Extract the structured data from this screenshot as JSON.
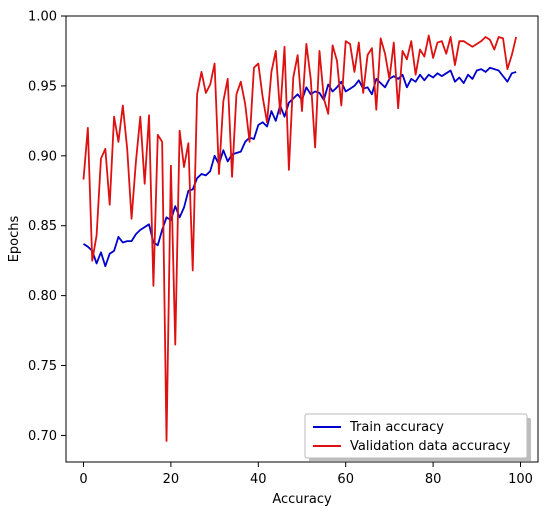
{
  "chart_data": {
    "type": "line",
    "title": "",
    "xlabel": "Accuracy",
    "ylabel": "Epochs",
    "xlim": [
      -4,
      104
    ],
    "ylim": [
      0.681,
      1.0
    ],
    "x_ticks": [
      0,
      20,
      40,
      60,
      80,
      100
    ],
    "y_ticks": [
      0.7,
      0.75,
      0.8,
      0.85,
      0.9,
      0.95,
      1.0
    ],
    "y_tick_labels": [
      "0.70",
      "0.75",
      "0.80",
      "0.85",
      "0.90",
      "0.95",
      "1.00"
    ],
    "grid": false,
    "legend_position": "lower-right",
    "series": [
      {
        "name": "Train accuracy",
        "color": "#0000cc",
        "x": [
          0,
          1,
          2,
          3,
          4,
          5,
          6,
          7,
          8,
          9,
          10,
          11,
          12,
          13,
          14,
          15,
          16,
          17,
          18,
          19,
          20,
          21,
          22,
          23,
          24,
          25,
          26,
          27,
          28,
          29,
          30,
          31,
          32,
          33,
          34,
          35,
          36,
          37,
          38,
          39,
          40,
          41,
          42,
          43,
          44,
          45,
          46,
          47,
          48,
          49,
          50,
          51,
          52,
          53,
          54,
          55,
          56,
          57,
          58,
          59,
          60,
          61,
          62,
          63,
          64,
          65,
          66,
          67,
          68,
          69,
          70,
          71,
          72,
          73,
          74,
          75,
          76,
          77,
          78,
          79,
          80,
          81,
          82,
          83,
          84,
          85,
          86,
          87,
          88,
          89,
          90,
          91,
          92,
          93,
          94,
          95,
          96,
          97,
          98,
          99
        ],
        "values": [
          0.837,
          0.835,
          0.832,
          0.823,
          0.831,
          0.821,
          0.83,
          0.832,
          0.842,
          0.838,
          0.839,
          0.839,
          0.844,
          0.847,
          0.849,
          0.851,
          0.838,
          0.836,
          0.847,
          0.856,
          0.854,
          0.864,
          0.856,
          0.863,
          0.875,
          0.876,
          0.884,
          0.887,
          0.886,
          0.889,
          0.9,
          0.894,
          0.904,
          0.896,
          0.901,
          0.902,
          0.903,
          0.91,
          0.913,
          0.912,
          0.922,
          0.924,
          0.921,
          0.932,
          0.925,
          0.936,
          0.928,
          0.938,
          0.941,
          0.944,
          0.94,
          0.949,
          0.944,
          0.946,
          0.945,
          0.94,
          0.951,
          0.946,
          0.949,
          0.953,
          0.946,
          0.948,
          0.95,
          0.954,
          0.948,
          0.949,
          0.944,
          0.955,
          0.952,
          0.949,
          0.955,
          0.957,
          0.955,
          0.958,
          0.949,
          0.955,
          0.953,
          0.958,
          0.954,
          0.958,
          0.956,
          0.959,
          0.957,
          0.959,
          0.961,
          0.953,
          0.956,
          0.952,
          0.958,
          0.955,
          0.961,
          0.962,
          0.96,
          0.963,
          0.962,
          0.961,
          0.957,
          0.953,
          0.959,
          0.96
        ]
      },
      {
        "name": "Validation data accuracy",
        "color": "#dd1111",
        "x": [
          0,
          1,
          2,
          3,
          4,
          5,
          6,
          7,
          8,
          9,
          10,
          11,
          12,
          13,
          14,
          15,
          16,
          17,
          18,
          19,
          20,
          21,
          22,
          23,
          24,
          25,
          26,
          27,
          28,
          29,
          30,
          31,
          32,
          33,
          34,
          35,
          36,
          37,
          38,
          39,
          40,
          41,
          42,
          43,
          44,
          45,
          46,
          47,
          48,
          49,
          50,
          51,
          52,
          53,
          54,
          55,
          56,
          57,
          58,
          59,
          60,
          61,
          62,
          63,
          64,
          65,
          66,
          67,
          68,
          69,
          70,
          71,
          72,
          73,
          74,
          75,
          76,
          77,
          78,
          79,
          80,
          81,
          82,
          83,
          84,
          85,
          86,
          87,
          88,
          89,
          90,
          91,
          92,
          93,
          94,
          95,
          96,
          97,
          98,
          99
        ],
        "values": [
          0.883,
          0.92,
          0.825,
          0.843,
          0.898,
          0.905,
          0.865,
          0.928,
          0.91,
          0.936,
          0.905,
          0.855,
          0.896,
          0.928,
          0.88,
          0.929,
          0.807,
          0.915,
          0.91,
          0.696,
          0.893,
          0.765,
          0.918,
          0.892,
          0.909,
          0.818,
          0.944,
          0.96,
          0.945,
          0.951,
          0.966,
          0.887,
          0.939,
          0.955,
          0.885,
          0.944,
          0.953,
          0.937,
          0.91,
          0.963,
          0.966,
          0.942,
          0.924,
          0.96,
          0.975,
          0.93,
          0.978,
          0.89,
          0.956,
          0.972,
          0.932,
          0.98,
          0.955,
          0.906,
          0.975,
          0.941,
          0.93,
          0.979,
          0.968,
          0.936,
          0.982,
          0.98,
          0.96,
          0.981,
          0.945,
          0.972,
          0.977,
          0.933,
          0.984,
          0.973,
          0.955,
          0.981,
          0.934,
          0.975,
          0.969,
          0.982,
          0.958,
          0.976,
          0.971,
          0.986,
          0.97,
          0.981,
          0.982,
          0.973,
          0.985,
          0.965,
          0.982,
          0.982,
          0.98,
          0.978,
          0.98,
          0.982,
          0.985,
          0.983,
          0.976,
          0.985,
          0.984,
          0.962,
          0.972,
          0.985
        ]
      }
    ]
  }
}
